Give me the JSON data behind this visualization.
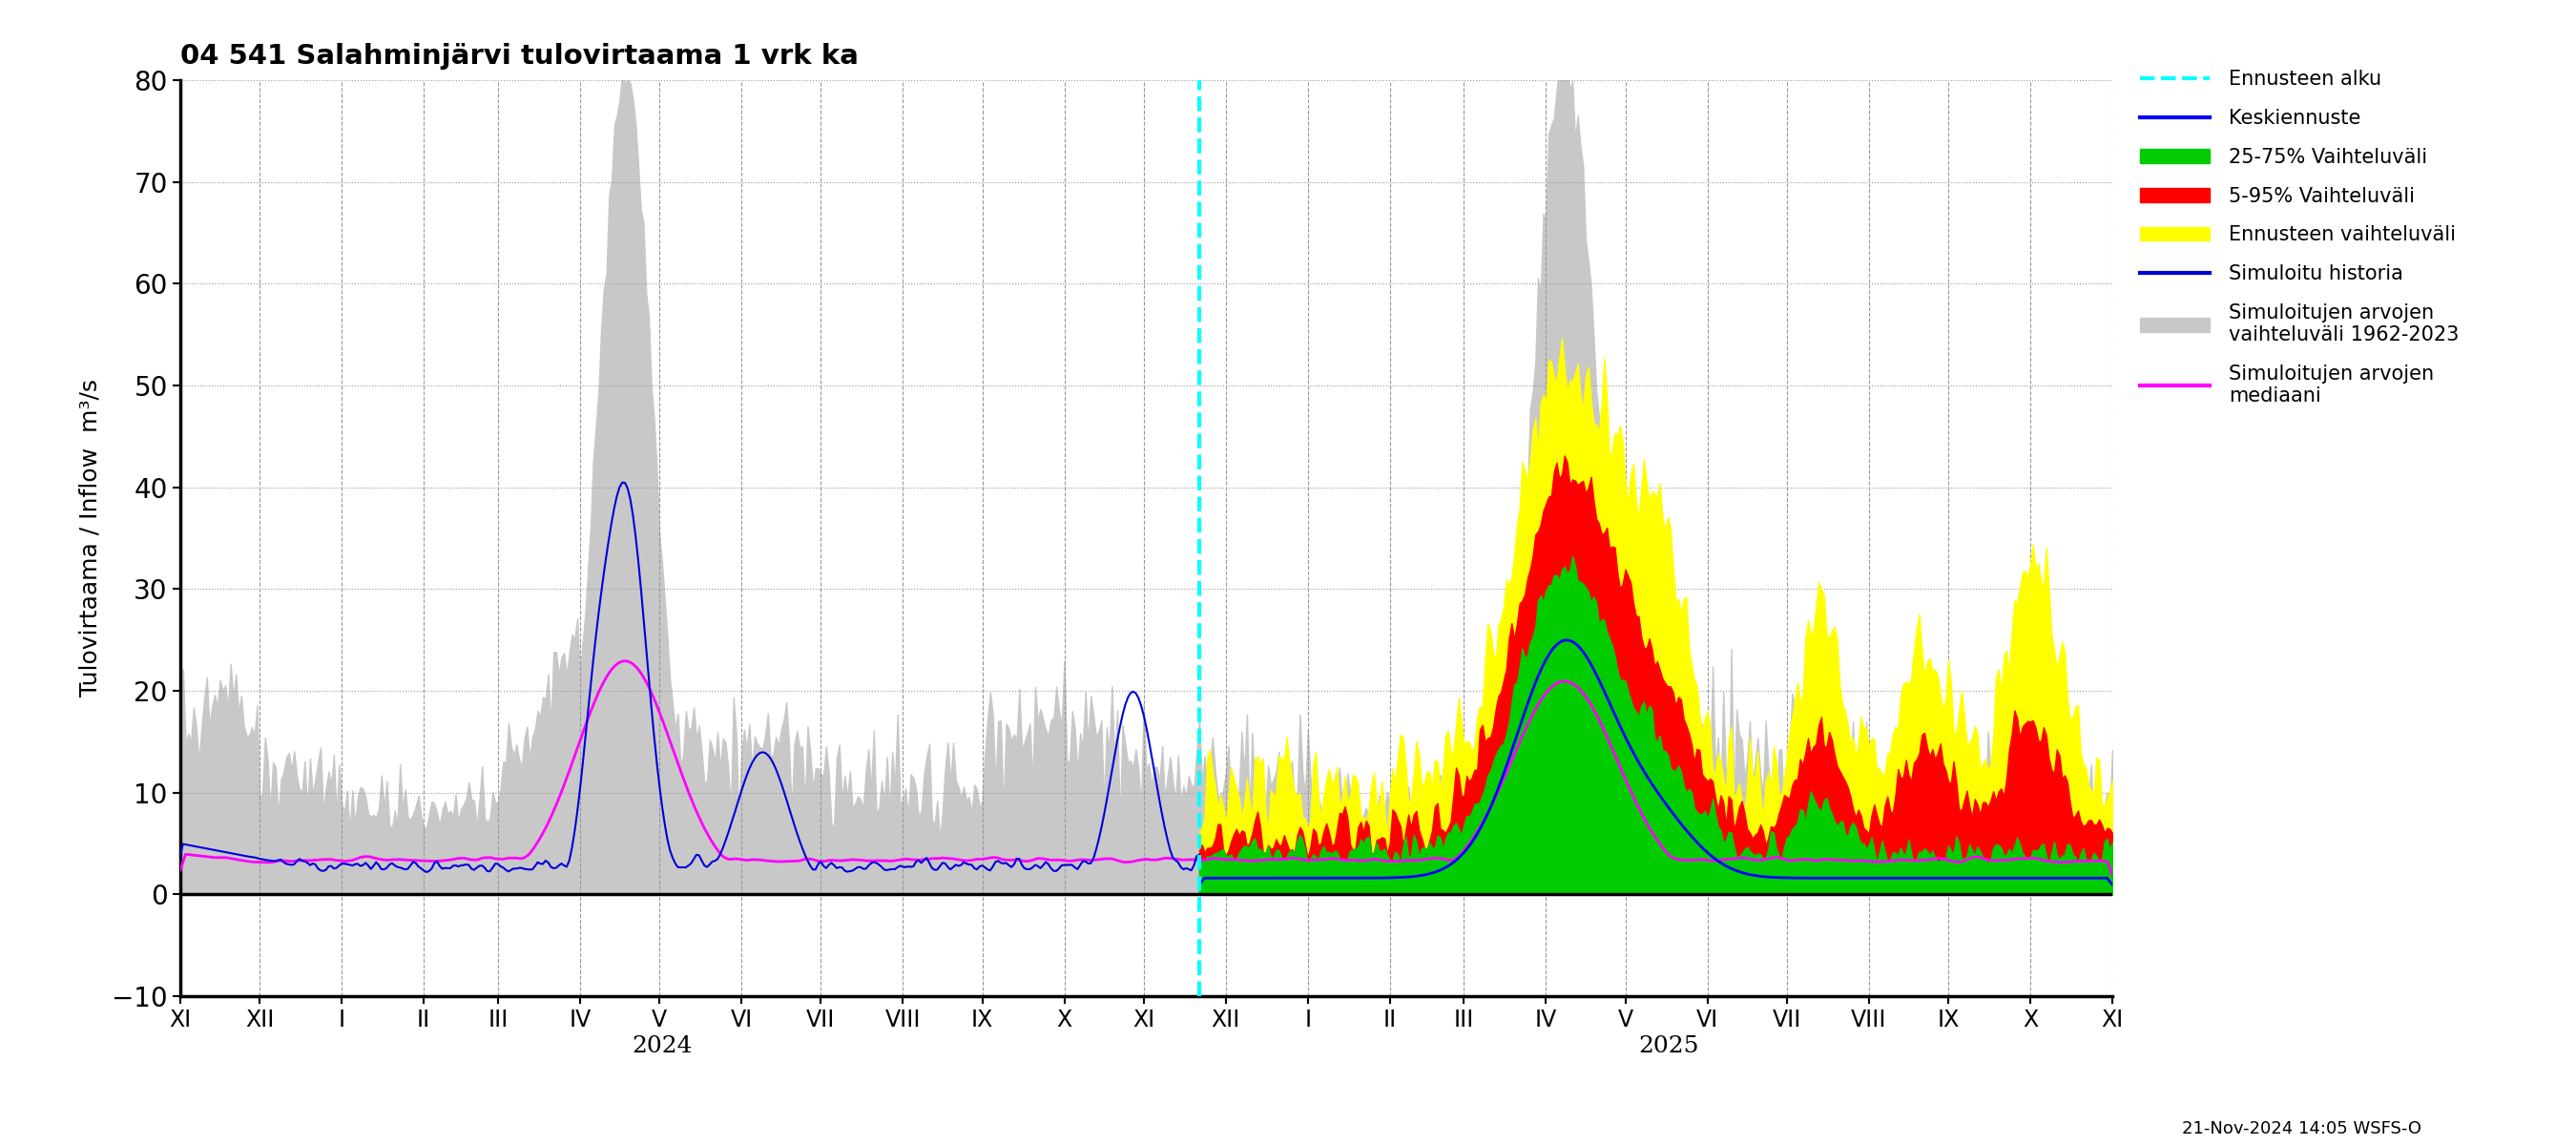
{
  "title": "04 541 Salahminjärvi tulovirtaama 1 vrk ka",
  "ylabel": "Tulovirtaama / Inflow  m³/s",
  "ylim": [
    -10,
    80
  ],
  "yticks": [
    -10,
    0,
    10,
    20,
    30,
    40,
    50,
    60,
    70,
    80
  ],
  "footnote": "21-Nov-2024 14:05 WSFS-O",
  "background_color": "#ffffff",
  "grid_color": "#999999",
  "legend_items": [
    {
      "label": "Ennusteen alku",
      "color": "#00ffff",
      "linestyle": "--",
      "linewidth": 3
    },
    {
      "label": "Keskiennuste",
      "color": "#0000ff",
      "linestyle": "-",
      "linewidth": 3
    },
    {
      "label": "25-75% Vaihteluväli",
      "color": "#00cc00",
      "linestyle": "-",
      "linewidth": 5
    },
    {
      "label": "5-95% Vaihteluväli",
      "color": "#ff0000",
      "linestyle": "-",
      "linewidth": 5
    },
    {
      "label": "Ennusteen vaihteluväli",
      "color": "#ffff00",
      "linestyle": "-",
      "linewidth": 5
    },
    {
      "label": "Simuloitu historia",
      "color": "#0000cc",
      "linestyle": "-",
      "linewidth": 3
    },
    {
      "label": "Simuloitujen arvojen\nvaihteluväli 1962-2023",
      "color": "#c0c0c0",
      "linestyle": "-",
      "linewidth": 5
    },
    {
      "label": "Simuloitujen arvojen\nmediaani",
      "color": "#ff00ff",
      "linestyle": "-",
      "linewidth": 3
    }
  ],
  "month_labels": [
    "XI",
    "XII",
    "I",
    "II",
    "III",
    "IV",
    "V",
    "VI",
    "VII",
    "VIII",
    "IX",
    "X",
    "XI",
    "XII",
    "I",
    "II",
    "III",
    "IV",
    "V",
    "VI",
    "VII",
    "VIII",
    "IX",
    "X",
    "XI"
  ],
  "colors": {
    "hist_sim_range": "#c8c8c8",
    "hist_sim_median": "#ff00ff",
    "simulated_history": "#0000dd",
    "forecast_median": "#0000ff",
    "forecast_25_75": "#00cc00",
    "forecast_5_95": "#ff0000",
    "forecast_range": "#ffff00",
    "forecast_line": "#00ffff"
  }
}
